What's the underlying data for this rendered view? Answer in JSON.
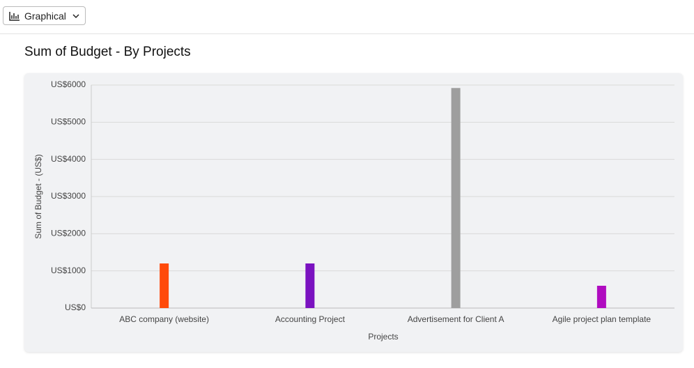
{
  "toolbar": {
    "view_button": "Graphical"
  },
  "chart_data": {
    "type": "bar",
    "title": "Sum of Budget - By Projects",
    "x_label": "Projects",
    "y_label": "Sum of Budget - (US$)",
    "categories": [
      "ABC company (website)",
      "Accounting Project",
      "Advertisement for Client A",
      "Agile project plan template"
    ],
    "values": [
      1200,
      1200,
      5920,
      600
    ],
    "colors": [
      "#ff4a0a",
      "#7a12c0",
      "#9e9e9e",
      "#b00cc0"
    ],
    "ylim": [
      0,
      6000
    ],
    "yticks": [
      {
        "value": 0,
        "label": "US$0"
      },
      {
        "value": 1000,
        "label": "US$1000"
      },
      {
        "value": 2000,
        "label": "US$2000"
      },
      {
        "value": 3000,
        "label": "US$3000"
      },
      {
        "value": 4000,
        "label": "US$4000"
      },
      {
        "value": 5000,
        "label": "US$5000"
      },
      {
        "value": 6000,
        "label": "US$6000"
      }
    ],
    "grid": true
  }
}
